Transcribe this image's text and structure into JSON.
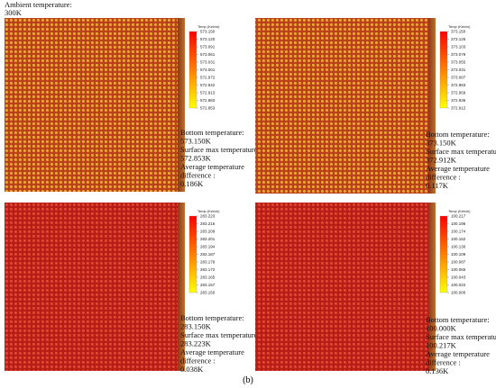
{
  "ambient": {
    "label": "Ambient temperature:",
    "value": "300K"
  },
  "panels": [
    {
      "legend_title": "Temp (Kelvin)",
      "ticks": [
        "573.150",
        "573.120",
        "573.091",
        "573.061",
        "573.031",
        "573.001",
        "572.972",
        "572.942",
        "572.913",
        "572.883",
        "572.853"
      ],
      "notes": [
        "Bottom temperature:",
        "573.150K",
        "Surface max temperature:",
        "572.853K",
        "Average temperature",
        "difference :",
        "0.186K"
      ]
    },
    {
      "legend_title": "Temp (Kelvin)",
      "ticks": [
        "373.150",
        "373.126",
        "373.103",
        "373.079",
        "373.055",
        "373.031",
        "373.007",
        "372.983",
        "372.959",
        "372.936",
        "372.912"
      ],
      "notes": [
        "Bottom temperature:",
        "373.150K",
        "Surface max temperature:",
        "372.912K",
        "Average temperature",
        "difference :",
        "0.117K"
      ]
    },
    {
      "legend_title": "Temp (Kelvin)",
      "ticks": [
        "283.223",
        "283.216",
        "283.209",
        "283.201",
        "283.194",
        "283.187",
        "283.179",
        "283.172",
        "283.165",
        "283.157",
        "283.150"
      ],
      "notes": [
        "Bottom temperature:",
        "283.150K",
        "Surface max temperature:",
        "283.223K",
        "Average temperature",
        "difference :",
        "0.038K"
      ]
    },
    {
      "legend_title": "Temp (Kelvin)",
      "ticks": [
        "100.217",
        "100.196",
        "100.174",
        "100.152",
        "100.130",
        "100.109",
        "100.087",
        "100.065",
        "100.043",
        "100.022",
        "100.000"
      ],
      "notes": [
        "Bottom temperature:",
        "100.000K",
        "Surface max temperature:",
        "100.217K",
        "Average temperature",
        "difference :",
        "0.136K"
      ]
    }
  ],
  "caption": "(b)"
}
